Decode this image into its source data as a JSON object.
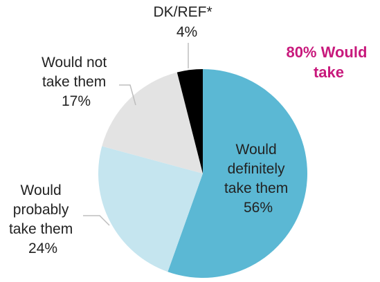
{
  "chart_data": {
    "type": "pie",
    "title": "",
    "start_angle_deg": 0,
    "direction": "clockwise",
    "slices": [
      {
        "label_lines": [
          "Would",
          "definitely",
          "take them"
        ],
        "pct_label": "56%",
        "value": 56,
        "color": "#5bb8d4"
      },
      {
        "label_lines": [
          "Would",
          "probably",
          "take them"
        ],
        "pct_label": "24%",
        "value": 24,
        "color": "#c5e5ef"
      },
      {
        "label_lines": [
          "Would not",
          "take them"
        ],
        "pct_label": "17%",
        "value": 17,
        "color": "#e3e3e3"
      },
      {
        "label_lines": [
          "DK/REF*"
        ],
        "pct_label": "4%",
        "value": 4,
        "color": "#000000"
      }
    ]
  },
  "callout": {
    "lines": [
      "80% Would",
      "take"
    ],
    "color": "#c8197c"
  }
}
